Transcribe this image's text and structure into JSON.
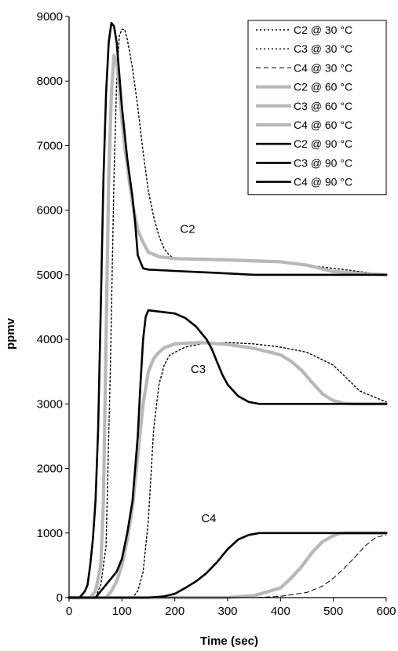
{
  "chart_data": {
    "type": "line",
    "title": "",
    "xlabel": "Time (sec)",
    "ylabel": "ppmv",
    "xlim": [
      0,
      600
    ],
    "ylim": [
      0,
      9000
    ],
    "xticks": [
      "0",
      "100",
      "200",
      "300",
      "400",
      "500",
      "600"
    ],
    "yticks": [
      "0",
      "1000",
      "2000",
      "3000",
      "4000",
      "5000",
      "6000",
      "7000",
      "8000",
      "9000"
    ],
    "grid": false,
    "legend_position": "top-right",
    "annotations": [
      {
        "text": "C2",
        "x": 210,
        "y": 5650
      },
      {
        "text": "C3",
        "x": 230,
        "y": 3480
      },
      {
        "text": "C4",
        "x": 250,
        "y": 1170
      }
    ],
    "series": [
      {
        "name": "C2 @ 30 °C",
        "style": "dotted-thin",
        "color": "#000000",
        "x": [
          0,
          50,
          60,
          70,
          78,
          85,
          90,
          95,
          100,
          105,
          110,
          120,
          130,
          140,
          150,
          160,
          170,
          180,
          190,
          200,
          220,
          300,
          400,
          450,
          500,
          550,
          600
        ],
        "y": [
          0,
          0,
          200,
          800,
          3500,
          6500,
          8000,
          8700,
          8800,
          8800,
          8650,
          8200,
          7600,
          6900,
          6300,
          5900,
          5600,
          5400,
          5300,
          5250,
          5250,
          5230,
          5200,
          5150,
          5100,
          5050,
          5000
        ]
      },
      {
        "name": "C3 @ 30 °C",
        "style": "dotted-thin",
        "color": "#000000",
        "x": [
          0,
          120,
          130,
          140,
          150,
          160,
          170,
          180,
          190,
          200,
          220,
          250,
          300,
          350,
          400,
          450,
          500,
          550,
          600
        ],
        "y": [
          0,
          0,
          100,
          400,
          1200,
          2600,
          3300,
          3600,
          3750,
          3800,
          3880,
          3930,
          3950,
          3930,
          3880,
          3800,
          3600,
          3200,
          3030
        ]
      },
      {
        "name": "C4 @ 30 °C",
        "style": "dashed-thin",
        "color": "#000000",
        "x": [
          0,
          350,
          400,
          450,
          480,
          500,
          520,
          540,
          560,
          580,
          600
        ],
        "y": [
          0,
          0,
          20,
          80,
          180,
          300,
          450,
          620,
          800,
          930,
          970
        ]
      },
      {
        "name": "C2 @ 60 °C",
        "style": "solid-thick",
        "color": "#b8b8b8",
        "x": [
          0,
          40,
          50,
          60,
          65,
          70,
          75,
          80,
          85,
          90,
          95,
          100,
          105,
          110,
          115,
          120,
          125,
          130,
          140,
          150,
          170,
          200,
          300,
          400,
          450,
          500,
          550,
          600
        ],
        "y": [
          0,
          0,
          100,
          500,
          1500,
          4000,
          6500,
          7800,
          8400,
          8300,
          7900,
          7400,
          7000,
          6700,
          6400,
          6100,
          5900,
          5700,
          5500,
          5350,
          5280,
          5250,
          5230,
          5200,
          5150,
          5050,
          5020,
          5000
        ]
      },
      {
        "name": "C3 @ 60 °C",
        "style": "solid-thick",
        "color": "#b8b8b8",
        "x": [
          0,
          70,
          80,
          90,
          100,
          110,
          120,
          130,
          140,
          150,
          160,
          170,
          180,
          200,
          250,
          300,
          350,
          400,
          420,
          440,
          460,
          480,
          500,
          520,
          540,
          560,
          600
        ],
        "y": [
          0,
          0,
          100,
          250,
          500,
          900,
          1400,
          2200,
          3000,
          3500,
          3700,
          3800,
          3870,
          3930,
          3950,
          3920,
          3860,
          3760,
          3660,
          3520,
          3330,
          3150,
          3050,
          3010,
          3000,
          3000,
          3000
        ]
      },
      {
        "name": "C4 @ 60 °C",
        "style": "solid-thick",
        "color": "#b8b8b8",
        "x": [
          0,
          300,
          350,
          400,
          420,
          440,
          460,
          480,
          500,
          510,
          520,
          600
        ],
        "y": [
          0,
          0,
          30,
          150,
          300,
          480,
          700,
          870,
          960,
          990,
          1000,
          1000
        ]
      },
      {
        "name": "C2 @ 90 °C",
        "style": "solid-medium",
        "color": "#000000",
        "x": [
          0,
          20,
          30,
          35,
          40,
          45,
          50,
          55,
          60,
          65,
          70,
          75,
          80,
          85,
          90,
          95,
          100,
          105,
          110,
          115,
          120,
          125,
          130,
          140,
          150,
          200,
          250,
          300,
          350,
          400,
          500,
          600
        ],
        "y": [
          0,
          0,
          100,
          200,
          500,
          900,
          1500,
          2600,
          4500,
          6500,
          7800,
          8600,
          8900,
          8850,
          8600,
          8100,
          7600,
          7200,
          6800,
          6500,
          6200,
          5800,
          5300,
          5100,
          5080,
          5060,
          5040,
          5020,
          5000,
          5000,
          5000,
          5000
        ]
      },
      {
        "name": "C3 @ 90 °C",
        "style": "solid-medium",
        "color": "#000000",
        "x": [
          0,
          50,
          60,
          70,
          80,
          90,
          100,
          110,
          120,
          130,
          135,
          140,
          145,
          150,
          160,
          200,
          220,
          240,
          260,
          270,
          280,
          290,
          300,
          320,
          340,
          360,
          380,
          400,
          600
        ],
        "y": [
          0,
          0,
          100,
          200,
          300,
          400,
          600,
          1000,
          1500,
          2500,
          3300,
          4000,
          4350,
          4450,
          4440,
          4400,
          4330,
          4200,
          4000,
          3850,
          3650,
          3450,
          3300,
          3120,
          3030,
          3000,
          3000,
          3000,
          3000
        ]
      },
      {
        "name": "C4 @ 90 °C",
        "style": "solid-medium",
        "color": "#000000",
        "x": [
          0,
          150,
          180,
          200,
          220,
          240,
          260,
          280,
          300,
          320,
          340,
          360,
          380,
          400,
          600
        ],
        "y": [
          0,
          0,
          20,
          60,
          150,
          250,
          380,
          550,
          750,
          900,
          970,
          1000,
          1000,
          1000,
          1000
        ]
      }
    ]
  }
}
